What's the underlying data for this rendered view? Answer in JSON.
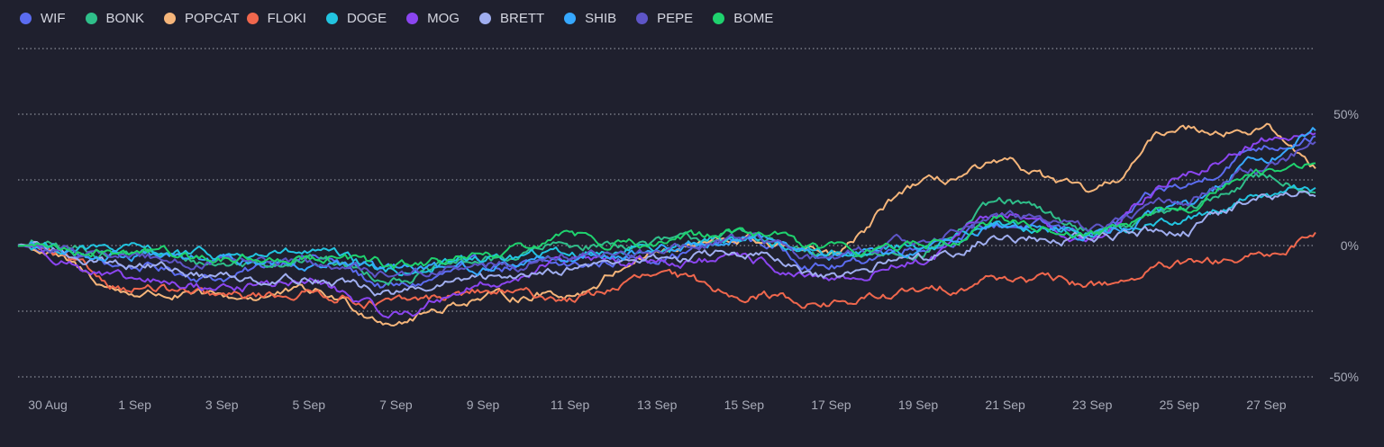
{
  "chart_data": {
    "type": "line",
    "title": "",
    "xlabel": "",
    "ylabel": "",
    "x_start": "2024-08-30",
    "x_end": "2024-09-28",
    "x_ticks": [
      "30 Aug",
      "1 Sep",
      "3 Sep",
      "5 Sep",
      "7 Sep",
      "9 Sep",
      "11 Sep",
      "13 Sep",
      "15 Sep",
      "17 Sep",
      "19 Sep",
      "21 Sep",
      "23 Sep",
      "25 Sep",
      "27 Sep"
    ],
    "y_ticks": [
      {
        "value": 50,
        "label": "50%"
      },
      {
        "value": 0,
        "label": "0%"
      },
      {
        "value": -50,
        "label": "-50%"
      }
    ],
    "ylim": [
      -50,
      75
    ],
    "grid": true,
    "legend_position": "top-left",
    "x": [
      "2024-08-30",
      "2024-09-01",
      "2024-09-03",
      "2024-09-05",
      "2024-09-07",
      "2024-09-09",
      "2024-09-11",
      "2024-09-13",
      "2024-09-15",
      "2024-09-17",
      "2024-09-19",
      "2024-09-21",
      "2024-09-23",
      "2024-09-25",
      "2024-09-27",
      "2024-09-28"
    ],
    "series": [
      {
        "name": "WIF",
        "color": "#5b6cf0",
        "values": [
          0,
          -8,
          -12,
          -4,
          -16,
          -8,
          -8,
          -4,
          2,
          -8,
          0,
          8,
          5,
          22,
          38,
          42
        ]
      },
      {
        "name": "BONK",
        "color": "#2fbf8a",
        "values": [
          0,
          -3,
          -7,
          -5,
          -12,
          -6,
          0,
          1,
          4,
          -5,
          -2,
          16,
          6,
          13,
          26,
          22
        ]
      },
      {
        "name": "POPCAT",
        "color": "#f5b57a",
        "values": [
          0,
          -18,
          -20,
          -18,
          -28,
          -20,
          -18,
          -2,
          2,
          -4,
          23,
          30,
          20,
          45,
          44,
          30
        ]
      },
      {
        "name": "FLOKI",
        "color": "#f0674d",
        "values": [
          0,
          -16,
          -20,
          -18,
          -22,
          -18,
          -20,
          -12,
          -18,
          -22,
          -18,
          -12,
          -15,
          -8,
          -5,
          5
        ]
      },
      {
        "name": "DOGE",
        "color": "#22c4e0",
        "values": [
          0,
          -2,
          -4,
          -3,
          -10,
          -5,
          -3,
          0,
          3,
          -3,
          0,
          8,
          5,
          10,
          20,
          22
        ]
      },
      {
        "name": "MOG",
        "color": "#8b45f0",
        "values": [
          0,
          -14,
          -16,
          -14,
          -26,
          -15,
          -6,
          -6,
          -6,
          -14,
          -6,
          12,
          3,
          26,
          40,
          45
        ]
      },
      {
        "name": "BRETT",
        "color": "#a0aef0",
        "values": [
          0,
          -7,
          -12,
          -12,
          -18,
          -13,
          -8,
          -5,
          -3,
          -13,
          -4,
          3,
          3,
          6,
          18,
          20
        ]
      },
      {
        "name": "SHIB",
        "color": "#36a8ff",
        "values": [
          0,
          -4,
          -6,
          -6,
          -10,
          -8,
          -4,
          -2,
          4,
          -4,
          -2,
          8,
          5,
          14,
          34,
          45
        ]
      },
      {
        "name": "PEPE",
        "color": "#5e55c7",
        "values": [
          0,
          -4,
          -7,
          -7,
          -11,
          -8,
          -5,
          -2,
          2,
          -5,
          2,
          12,
          7,
          17,
          30,
          38
        ]
      },
      {
        "name": "BOME",
        "color": "#1fd26e",
        "values": [
          0,
          -2,
          -5,
          -4,
          -8,
          -5,
          3,
          1,
          5,
          -1,
          0,
          10,
          4,
          14,
          28,
          30
        ]
      }
    ]
  }
}
